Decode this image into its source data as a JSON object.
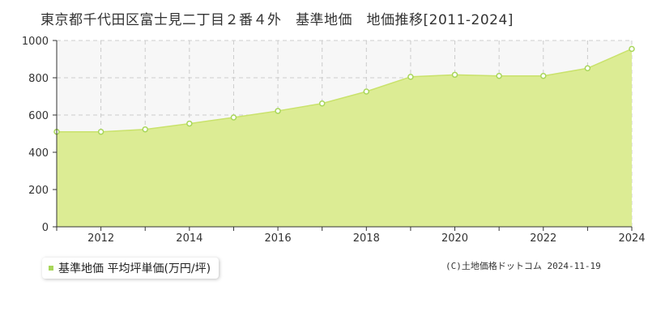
{
  "colors": {
    "fill": "#dcec94",
    "line": "#c9e26b",
    "marker": "#a8d65a",
    "plot_bg": "#f7f7f7",
    "grid": "#cccccc"
  },
  "credit": {
    "source": "(C)土地価格ドットコム",
    "date": "2024-11-19"
  },
  "chart_data": {
    "type": "area",
    "title": "東京都千代田区富士見二丁目２番４外　基準地価　地価推移[2011-2024]",
    "legend": {
      "position": "bottom-left",
      "entries": [
        "基準地価 平均坪単価(万円/坪)"
      ]
    },
    "grid": true,
    "x": [
      2011,
      2012,
      2013,
      2014,
      2015,
      2016,
      2017,
      2018,
      2019,
      2020,
      2021,
      2022,
      2023,
      2024
    ],
    "xlim": [
      2011,
      2024
    ],
    "x_ticks": [
      "2012",
      "2014",
      "2016",
      "2018",
      "2020",
      "2022",
      "2024"
    ],
    "ylim": [
      0,
      1000
    ],
    "y_ticks": [
      "0",
      "200",
      "400",
      "600",
      "800",
      "1000"
    ],
    "series": [
      {
        "name": "基準地価 平均坪単価(万円/坪)",
        "values": [
          510,
          510,
          523,
          554,
          587,
          622,
          662,
          726,
          805,
          816,
          810,
          810,
          851,
          955
        ]
      }
    ]
  }
}
